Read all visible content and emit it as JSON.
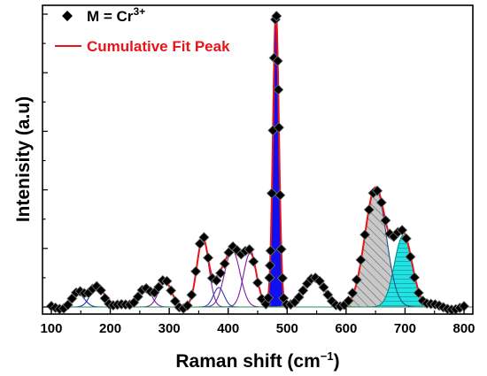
{
  "chart_data": {
    "type": "line",
    "xlabel": "Raman shift (cm",
    "xlabel_sup": "−1",
    "xlabel_close": ")",
    "ylabel": "Intenisity (a.u)",
    "xlim": [
      85,
      815
    ],
    "ylim": [
      0,
      100
    ],
    "xticks": [
      100,
      200,
      300,
      400,
      500,
      600,
      700,
      800
    ],
    "y_ticks_labeled": false,
    "legend": {
      "placement": "top-left",
      "entries": [
        {
          "base": "M = Cr",
          "sup": "3+",
          "marker": "diamond",
          "color": "#000000"
        },
        {
          "base": "Cumulative Fit Peak",
          "sup": "",
          "marker": "line",
          "color": "#e8141a"
        }
      ]
    },
    "baseline": 0,
    "peaks": [
      {
        "center": 145,
        "height": 4.5,
        "width": 11,
        "color": "#1a2fb0",
        "fill": "none"
      },
      {
        "center": 178,
        "height": 7.5,
        "width": 11,
        "color": "#1a2fb0",
        "fill": "none"
      },
      {
        "center": 258,
        "height": 7.0,
        "width": 11,
        "color": "#7a1fa0",
        "fill": "none"
      },
      {
        "center": 293,
        "height": 8.5,
        "width": 11,
        "color": "#7a1fa0",
        "fill": "none"
      },
      {
        "center": 357,
        "height": 23,
        "width": 10,
        "color": "#7a1fa0",
        "fill": "none"
      },
      {
        "center": 384,
        "height": 6.5,
        "width": 9,
        "color": "#2a3fb0",
        "fill": "none"
      },
      {
        "center": 407,
        "height": 19,
        "width": 13,
        "color": "#7a1fa0",
        "fill": "none"
      },
      {
        "center": 437,
        "height": 18,
        "width": 11,
        "color": "#7a1fa0",
        "fill": "none"
      },
      {
        "center": 481,
        "height": 99,
        "width": 5,
        "color": "#1010ee",
        "fill": "solid"
      },
      {
        "center": 545,
        "height": 9,
        "width": 20,
        "color": "#6b8e23",
        "fill": "none"
      },
      {
        "center": 650,
        "height": 40,
        "width": 18,
        "color": "#1f4f8c",
        "fill": "gray-hatch"
      },
      {
        "center": 697,
        "height": 24,
        "width": 15,
        "color": "#008b8b",
        "fill": "cyan-lines"
      }
    ],
    "data_points_x_step": 7,
    "baseline_color": "#2e8b57"
  }
}
